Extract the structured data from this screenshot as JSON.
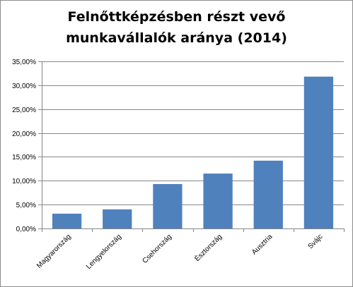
{
  "chart_data": {
    "type": "bar",
    "title": "Felnőttképzésben részt vevő munkavállalók aránya (2014)",
    "title_lines": [
      "Felnőttképzésben részt vevő",
      "munkavállalók aránya (2014)"
    ],
    "categories": [
      "Magyarország",
      "Lengyelország",
      "Csehország",
      "Észtország",
      "Ausztria",
      "Svájc"
    ],
    "values": [
      3.1,
      4.0,
      9.3,
      11.5,
      14.2,
      31.8
    ],
    "ylim": [
      0,
      35
    ],
    "yticks": [
      0,
      5,
      10,
      15,
      20,
      25,
      30,
      35
    ],
    "ytick_labels": [
      "0,00%",
      "5,00%",
      "10,00%",
      "15,00%",
      "20,00%",
      "25,00%",
      "30,00%",
      "35,00%"
    ],
    "xlabel": "",
    "ylabel": "",
    "grid": true,
    "bar_color": "#4f81bd",
    "grid_color": "#868686"
  }
}
